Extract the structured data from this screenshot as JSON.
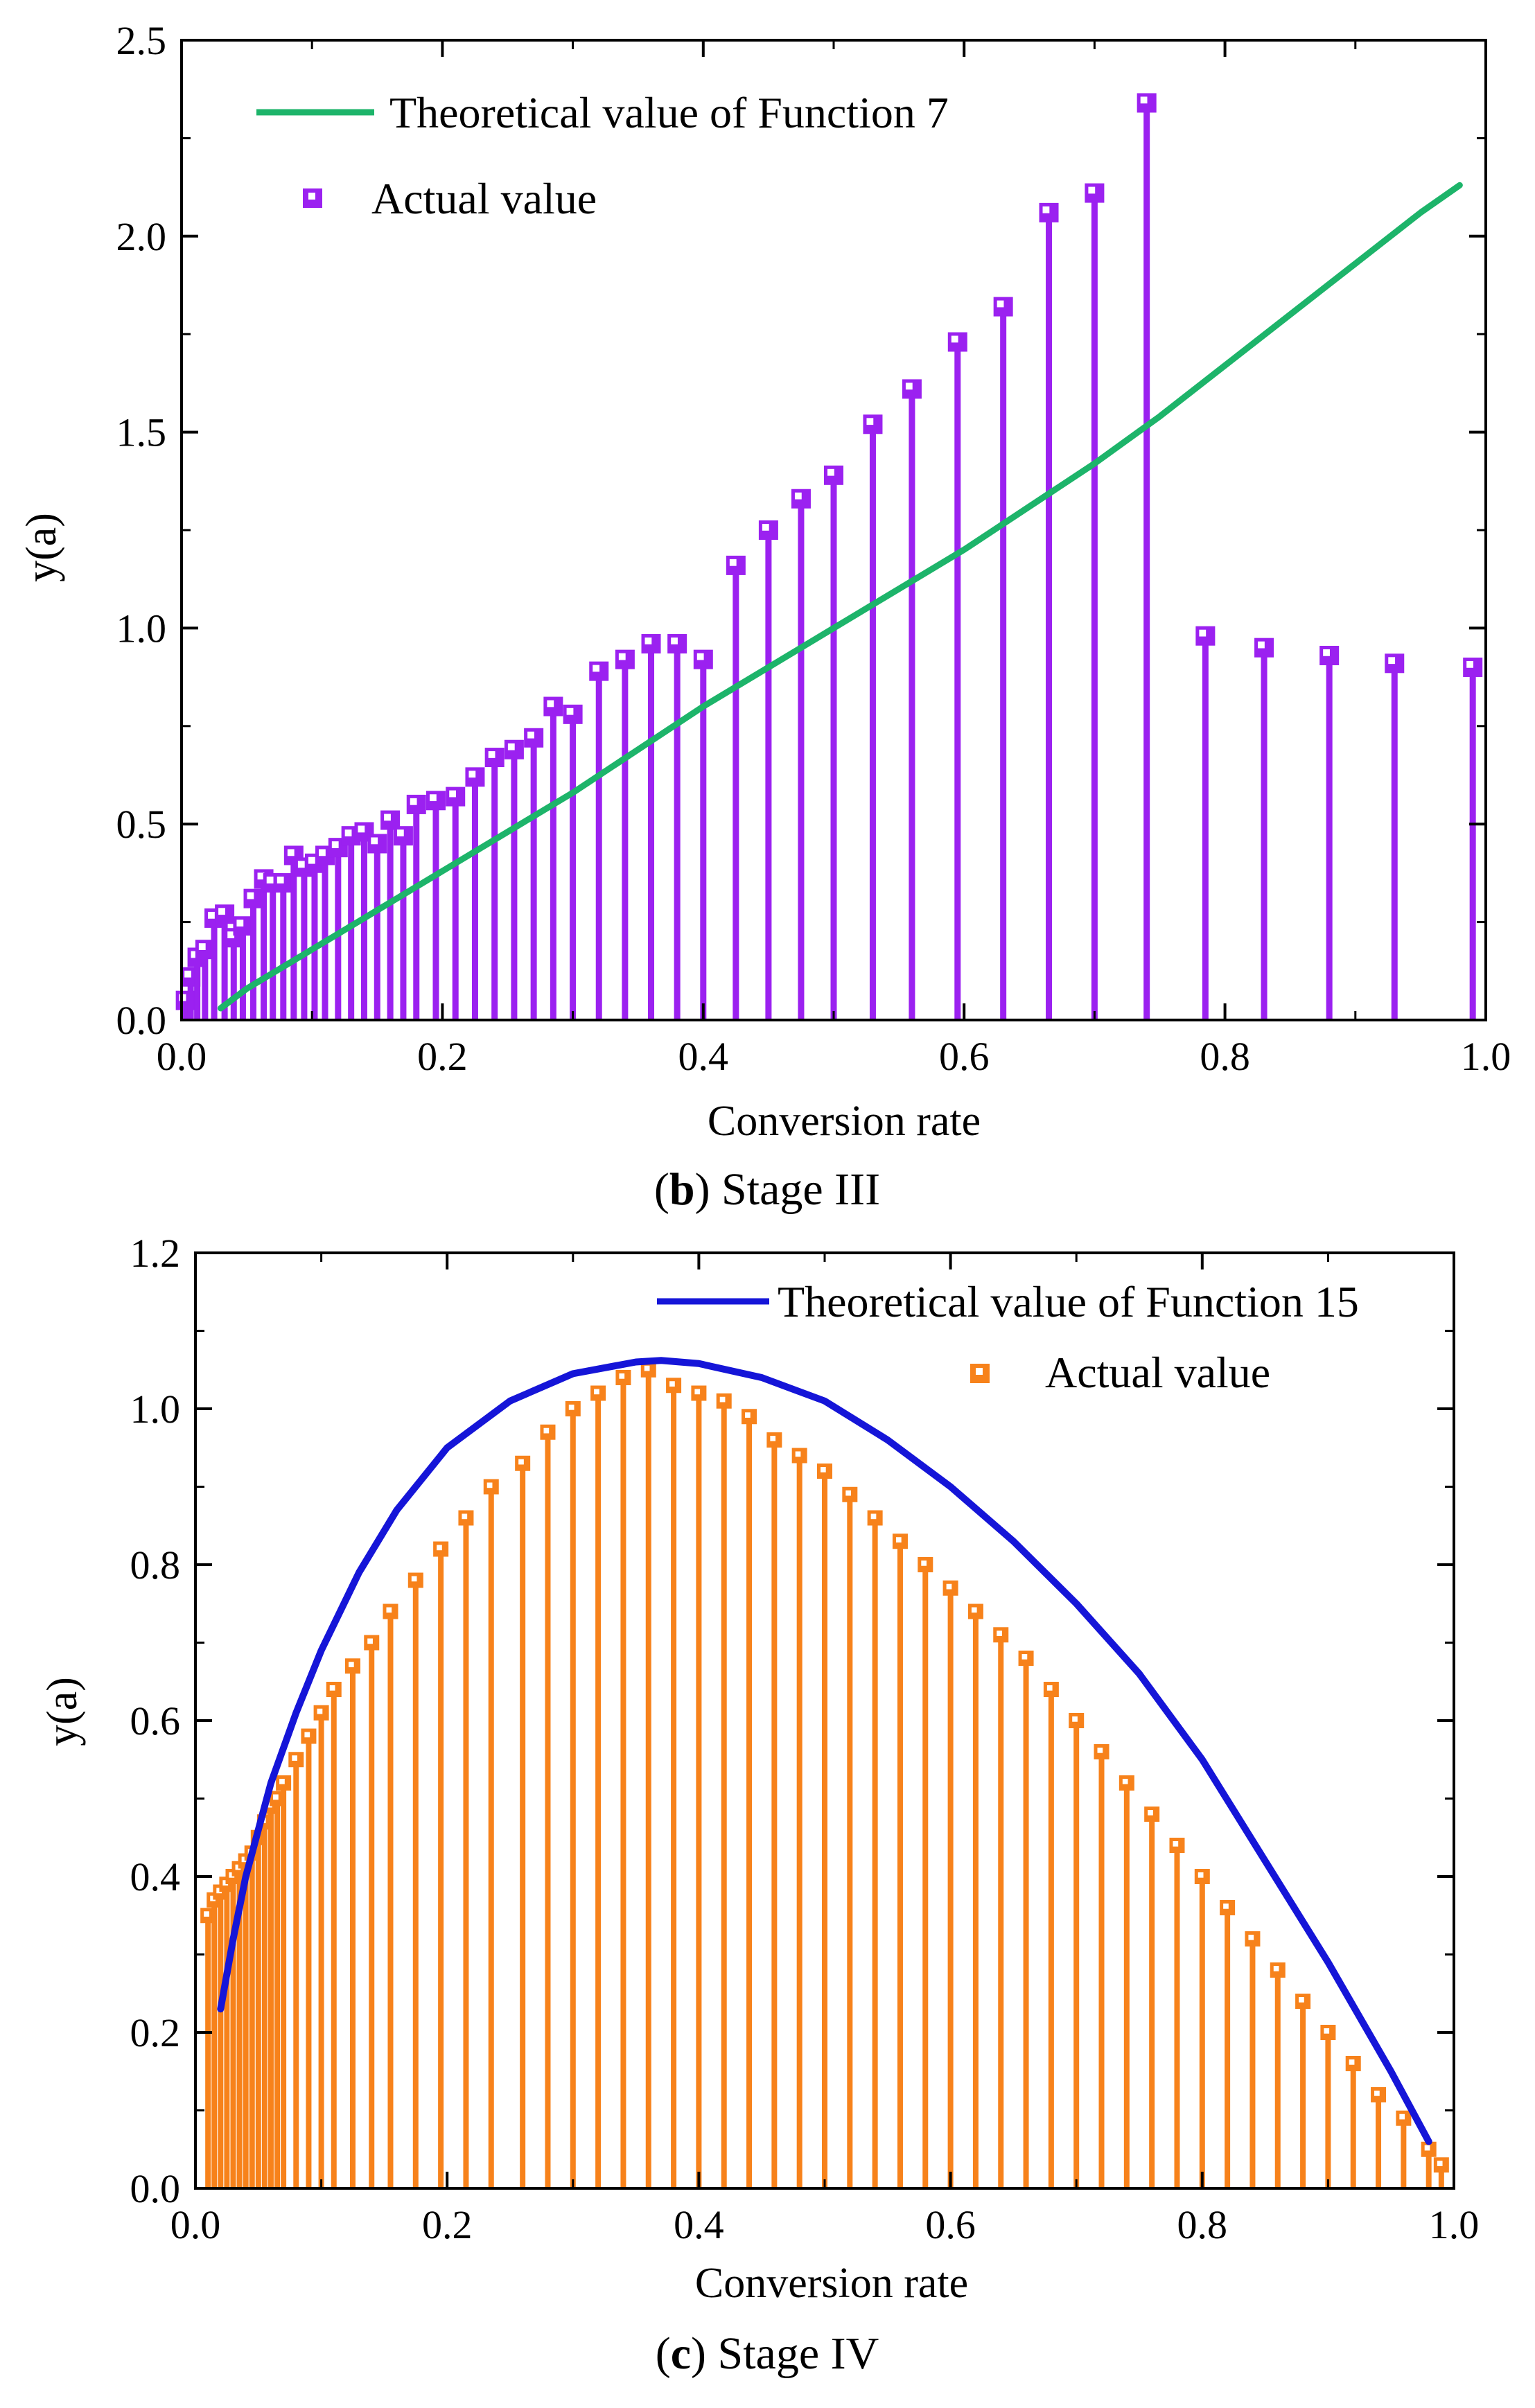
{
  "chart_data": [
    {
      "type": "scatter",
      "id": "b",
      "caption_letter": "b",
      "caption_text": "Stage III",
      "xlabel": "Conversion rate",
      "ylabel": "y(a)",
      "xlim": [
        0.0,
        1.0
      ],
      "ylim": [
        0.0,
        2.5
      ],
      "xticks": [
        "0.0",
        "0.2",
        "0.4",
        "0.6",
        "0.8",
        "1.0"
      ],
      "yticks": [
        "0.0",
        "0.5",
        "1.0",
        "1.5",
        "2.0",
        "2.5"
      ],
      "legend_position": "top-left",
      "series": [
        {
          "name": "Theoretical value of Function 7",
          "kind": "line",
          "color": "#1db46a",
          "x": [
            0.03,
            0.05,
            0.1,
            0.15,
            0.2,
            0.25,
            0.3,
            0.35,
            0.4,
            0.45,
            0.5,
            0.55,
            0.6,
            0.65,
            0.7,
            0.75,
            0.8,
            0.85,
            0.9,
            0.95,
            0.98
          ],
          "y": [
            0.03,
            0.08,
            0.18,
            0.28,
            0.38,
            0.48,
            0.58,
            0.69,
            0.8,
            0.9,
            1.0,
            1.1,
            1.2,
            1.31,
            1.42,
            1.54,
            1.67,
            1.8,
            1.93,
            2.06,
            2.13
          ]
        },
        {
          "name": "Actual value",
          "kind": "stem",
          "color": "#9b21f0",
          "x": [
            0.003,
            0.007,
            0.012,
            0.018,
            0.025,
            0.033,
            0.04,
            0.047,
            0.055,
            0.063,
            0.07,
            0.078,
            0.086,
            0.094,
            0.102,
            0.11,
            0.12,
            0.13,
            0.14,
            0.15,
            0.16,
            0.17,
            0.18,
            0.195,
            0.21,
            0.225,
            0.24,
            0.255,
            0.27,
            0.285,
            0.3,
            0.32,
            0.34,
            0.36,
            0.38,
            0.4,
            0.425,
            0.45,
            0.475,
            0.5,
            0.53,
            0.56,
            0.595,
            0.63,
            0.665,
            0.7,
            0.74,
            0.785,
            0.83,
            0.88,
            0.93,
            0.99
          ],
          "y": [
            0.05,
            0.11,
            0.16,
            0.18,
            0.26,
            0.27,
            0.21,
            0.24,
            0.31,
            0.36,
            0.35,
            0.35,
            0.42,
            0.39,
            0.4,
            0.42,
            0.44,
            0.47,
            0.48,
            0.45,
            0.51,
            0.47,
            0.55,
            0.56,
            0.57,
            0.62,
            0.67,
            0.69,
            0.72,
            0.8,
            0.78,
            0.89,
            0.92,
            0.96,
            0.96,
            0.92,
            1.16,
            1.25,
            1.33,
            1.39,
            1.52,
            1.61,
            1.73,
            1.82,
            2.06,
            2.11,
            2.34,
            0.98,
            0.95,
            0.93,
            0.91,
            0.9
          ]
        }
      ]
    },
    {
      "type": "scatter",
      "id": "c",
      "caption_letter": "c",
      "caption_text": "Stage IV",
      "xlabel": "Conversion rate",
      "ylabel": "y(a)",
      "xlim": [
        0.0,
        1.0
      ],
      "ylim": [
        0.0,
        1.2
      ],
      "xticks": [
        "0.0",
        "0.2",
        "0.4",
        "0.6",
        "0.8",
        "1.0"
      ],
      "yticks": [
        "0.0",
        "0.2",
        "0.4",
        "0.6",
        "0.8",
        "1.0",
        "1.2"
      ],
      "legend_position": "top-right",
      "series": [
        {
          "name": "Theoretical value of Function 15",
          "kind": "line",
          "color": "#1515d8",
          "x": [
            0.02,
            0.03,
            0.04,
            0.06,
            0.08,
            0.1,
            0.13,
            0.16,
            0.2,
            0.25,
            0.3,
            0.35,
            0.37,
            0.4,
            0.45,
            0.5,
            0.55,
            0.6,
            0.65,
            0.7,
            0.75,
            0.8,
            0.85,
            0.9,
            0.95,
            0.98
          ],
          "y": [
            0.23,
            0.32,
            0.4,
            0.52,
            0.61,
            0.69,
            0.79,
            0.87,
            0.95,
            1.01,
            1.045,
            1.06,
            1.062,
            1.058,
            1.04,
            1.01,
            0.96,
            0.9,
            0.83,
            0.75,
            0.66,
            0.55,
            0.42,
            0.29,
            0.15,
            0.06
          ]
        },
        {
          "name": "Actual value",
          "kind": "stem",
          "color": "#f7821b",
          "x": [
            0.01,
            0.015,
            0.02,
            0.025,
            0.03,
            0.035,
            0.04,
            0.045,
            0.05,
            0.055,
            0.06,
            0.065,
            0.07,
            0.08,
            0.09,
            0.1,
            0.11,
            0.125,
            0.14,
            0.155,
            0.175,
            0.195,
            0.215,
            0.235,
            0.26,
            0.28,
            0.3,
            0.32,
            0.34,
            0.36,
            0.38,
            0.4,
            0.42,
            0.44,
            0.46,
            0.48,
            0.5,
            0.52,
            0.54,
            0.56,
            0.58,
            0.6,
            0.62,
            0.64,
            0.66,
            0.68,
            0.7,
            0.72,
            0.74,
            0.76,
            0.78,
            0.8,
            0.82,
            0.84,
            0.86,
            0.88,
            0.9,
            0.92,
            0.94,
            0.96,
            0.98,
            0.99
          ],
          "y": [
            0.35,
            0.37,
            0.38,
            0.39,
            0.4,
            0.41,
            0.42,
            0.43,
            0.45,
            0.47,
            0.49,
            0.5,
            0.52,
            0.55,
            0.58,
            0.61,
            0.64,
            0.67,
            0.7,
            0.74,
            0.78,
            0.82,
            0.86,
            0.9,
            0.93,
            0.97,
            1.0,
            1.02,
            1.04,
            1.05,
            1.03,
            1.02,
            1.01,
            0.99,
            0.96,
            0.94,
            0.92,
            0.89,
            0.86,
            0.83,
            0.8,
            0.77,
            0.74,
            0.71,
            0.68,
            0.64,
            0.6,
            0.56,
            0.52,
            0.48,
            0.44,
            0.4,
            0.36,
            0.32,
            0.28,
            0.24,
            0.2,
            0.16,
            0.12,
            0.09,
            0.05,
            0.03
          ]
        }
      ]
    }
  ]
}
